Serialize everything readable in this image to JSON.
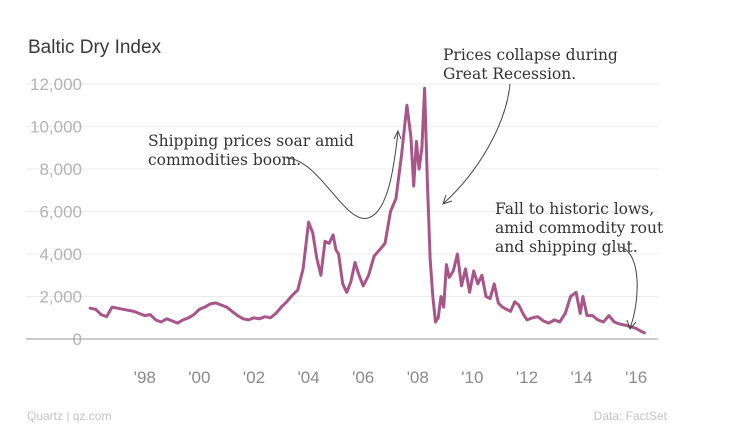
{
  "chart_data": {
    "type": "line",
    "title": "Baltic Dry Index",
    "xlabel": "",
    "ylabel": "",
    "xlim": [
      1995.7,
      2016.8
    ],
    "ylim": [
      0,
      12000
    ],
    "y_ticks": [
      0,
      2000,
      4000,
      6000,
      8000,
      10000,
      12000
    ],
    "y_tick_labels": [
      "0",
      "2,000",
      "4,000",
      "6,000",
      "8,000",
      "10,000",
      "12,000"
    ],
    "x_ticks": [
      1998,
      2000,
      2002,
      2004,
      2006,
      2008,
      2010,
      2012,
      2014,
      2016
    ],
    "x_tick_labels": [
      "'98",
      "'00",
      "'02",
      "'04",
      "'06",
      "'08",
      "'10",
      "'12",
      "'14",
      "'16"
    ],
    "grid": true,
    "line_color": "#a8568a",
    "series": [
      {
        "name": "Baltic Dry Index",
        "x": [
          1996.0,
          1996.2,
          1996.4,
          1996.6,
          1996.8,
          1997.0,
          1997.2,
          1997.4,
          1997.6,
          1997.8,
          1998.0,
          1998.2,
          1998.4,
          1998.6,
          1998.8,
          1999.0,
          1999.2,
          1999.4,
          1999.6,
          1999.8,
          2000.0,
          2000.2,
          2000.4,
          2000.6,
          2000.8,
          2001.0,
          2001.2,
          2001.4,
          2001.6,
          2001.8,
          2002.0,
          2002.2,
          2002.4,
          2002.6,
          2002.8,
          2003.0,
          2003.2,
          2003.4,
          2003.6,
          2003.8,
          2004.0,
          2004.15,
          2004.3,
          2004.45,
          2004.6,
          2004.75,
          2004.9,
          2005.0,
          2005.1,
          2005.25,
          2005.4,
          2005.55,
          2005.7,
          2005.85,
          2006.0,
          2006.2,
          2006.4,
          2006.6,
          2006.8,
          2007.0,
          2007.2,
          2007.4,
          2007.6,
          2007.75,
          2007.85,
          2007.95,
          2008.05,
          2008.15,
          2008.25,
          2008.35,
          2008.45,
          2008.55,
          2008.65,
          2008.75,
          2008.85,
          2008.95,
          2009.05,
          2009.15,
          2009.3,
          2009.45,
          2009.6,
          2009.75,
          2009.9,
          2010.05,
          2010.2,
          2010.35,
          2010.5,
          2010.65,
          2010.8,
          2010.95,
          2011.1,
          2011.25,
          2011.4,
          2011.55,
          2011.7,
          2011.85,
          2012.0,
          2012.2,
          2012.4,
          2012.6,
          2012.8,
          2013.0,
          2013.2,
          2013.4,
          2013.6,
          2013.8,
          2013.95,
          2014.05,
          2014.2,
          2014.4,
          2014.6,
          2014.8,
          2015.0,
          2015.2,
          2015.4,
          2015.6,
          2015.8,
          2016.0,
          2016.1,
          2016.2,
          2016.3
        ],
        "values": [
          1450,
          1400,
          1150,
          1050,
          1500,
          1450,
          1400,
          1350,
          1300,
          1200,
          1100,
          1150,
          900,
          800,
          950,
          850,
          750,
          900,
          1000,
          1150,
          1400,
          1500,
          1650,
          1700,
          1600,
          1500,
          1300,
          1100,
          950,
          900,
          1000,
          950,
          1050,
          1000,
          1200,
          1500,
          1750,
          2050,
          2300,
          3300,
          5500,
          5000,
          3800,
          3000,
          4600,
          4500,
          4900,
          4200,
          4000,
          2600,
          2200,
          2700,
          3600,
          3000,
          2500,
          3000,
          3900,
          4200,
          4500,
          6000,
          6600,
          8600,
          11000,
          9500,
          7200,
          9300,
          8000,
          9000,
          11800,
          7500,
          3800,
          2000,
          800,
          1000,
          2000,
          1500,
          3500,
          2900,
          3200,
          4000,
          2500,
          3300,
          2200,
          3200,
          2600,
          3000,
          2000,
          1900,
          2600,
          1700,
          1500,
          1400,
          1300,
          1750,
          1600,
          1200,
          900,
          1000,
          1050,
          850,
          750,
          900,
          800,
          1200,
          2000,
          2200,
          1200,
          2000,
          1100,
          1100,
          900,
          800,
          1100,
          800,
          700,
          650,
          580,
          500,
          420,
          350,
          290
        ]
      }
    ],
    "annotations": [
      {
        "lines": [
          "Shipping prices soar amid",
          "commodities boom."
        ]
      },
      {
        "lines": [
          "Prices collapse during",
          "Great Recession."
        ]
      },
      {
        "lines": [
          "Fall to historic lows,",
          "amid commodity rout",
          "and shipping glut."
        ]
      }
    ]
  },
  "footer": {
    "source_left": "Quartz | qz.com",
    "source_right": "Data: FactSet"
  }
}
